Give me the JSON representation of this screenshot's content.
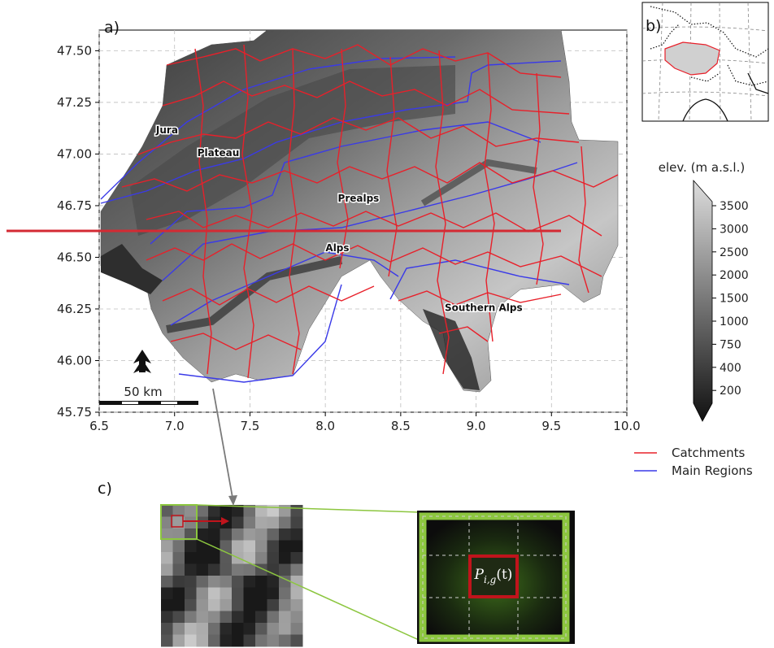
{
  "panel_a": {
    "label": "a)",
    "x_ticks": [
      "6.5",
      "7.0",
      "7.5",
      "8.0",
      "8.5",
      "9.0",
      "9.5",
      "10.0"
    ],
    "y_ticks": [
      "47.50",
      "47.25",
      "47.00",
      "46.75",
      "46.50",
      "46.25",
      "46.00",
      "45.75"
    ],
    "xlim": [
      6.5,
      10.0
    ],
    "ylim": [
      45.75,
      47.6
    ],
    "grid": true,
    "regions": [
      {
        "name": "Jura",
        "lon": 6.95,
        "lat": 47.1
      },
      {
        "name": "Plateau",
        "lon": 7.29,
        "lat": 46.99
      },
      {
        "name": "Prealps",
        "lon": 8.22,
        "lat": 46.77
      },
      {
        "name": "Alps",
        "lon": 8.08,
        "lat": 46.53
      },
      {
        "name": "Southern Alps",
        "lon": 9.05,
        "lat": 46.24
      }
    ],
    "scale_bar_label": "50 km",
    "north_arrow": "north-arrow-icon"
  },
  "panel_b": {
    "label": "b)"
  },
  "panel_c": {
    "label": "c)",
    "cell_label": "P",
    "cell_subscript": "i,g",
    "cell_suffix": "(t)"
  },
  "colorbar": {
    "title": "elev. (m a.s.l.)",
    "ticks": [
      "3500",
      "3000",
      "2500",
      "2000",
      "1500",
      "1000",
      "750",
      "400",
      "200"
    ]
  },
  "legend": [
    {
      "label": "Catchments",
      "color": "#e8202a"
    },
    {
      "label": "Main Regions",
      "color": "#3a3ae8"
    }
  ],
  "colors": {
    "catchment": "#e8202a",
    "region_border": "#3a3ae8",
    "highlight_green": "#8cc63f",
    "red_marker": "#c0141c"
  }
}
